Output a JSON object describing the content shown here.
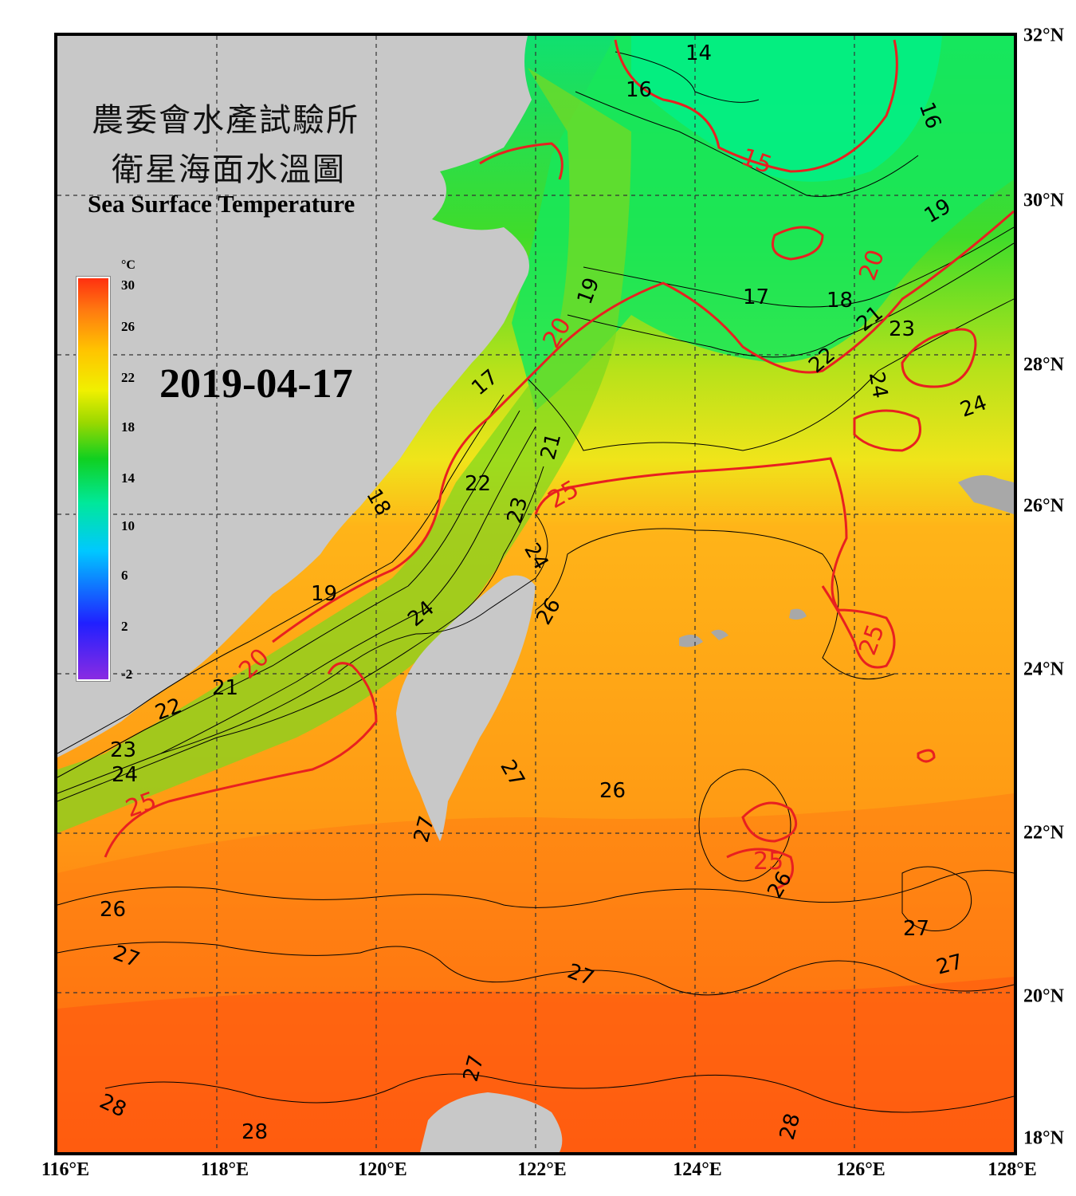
{
  "title": {
    "line1": "農委會水產試驗所",
    "line2": "衛星海面水溫圖",
    "english": "Sea Surface Temperature"
  },
  "date": "2019-04-17",
  "colorbar": {
    "unit": "°C",
    "ticks": [
      "30",
      "26",
      "22",
      "18",
      "14",
      "10",
      "6",
      "2",
      "-2"
    ],
    "range": [
      -2,
      30
    ],
    "colors": [
      "#8a2be2",
      "#2020ff",
      "#00c8ff",
      "#00e89a",
      "#10d020",
      "#9ad800",
      "#f0f000",
      "#ffc400",
      "#ff7a10",
      "#ff3010"
    ]
  },
  "axes": {
    "lat_labels": [
      "32°N",
      "30°N",
      "28°N",
      "26°N",
      "24°N",
      "22°N",
      "20°N",
      "18°N"
    ],
    "lon_labels": [
      "116°E",
      "118°E",
      "120°E",
      "122°E",
      "124°E",
      "126°E",
      "128°E"
    ],
    "lat_range": [
      18,
      32
    ],
    "lon_range": [
      116,
      128
    ]
  },
  "contours": {
    "red_labels": [
      "15",
      "20",
      "20",
      "20",
      "25",
      "25",
      "25",
      "25"
    ],
    "black_labels": [
      "14",
      "16",
      "16",
      "17",
      "17",
      "18",
      "18",
      "19",
      "19",
      "19",
      "21",
      "21",
      "21",
      "22",
      "22",
      "22",
      "23",
      "23",
      "23",
      "24",
      "24",
      "24",
      "24",
      "24",
      "26",
      "26",
      "26",
      "26",
      "27",
      "27",
      "27",
      "27",
      "27",
      "27",
      "27",
      "28",
      "28",
      "28"
    ]
  },
  "colors": {
    "land": "#c8c8c8",
    "contour_major": "#e82020",
    "contour_minor": "#000000",
    "frame": "#000000"
  }
}
